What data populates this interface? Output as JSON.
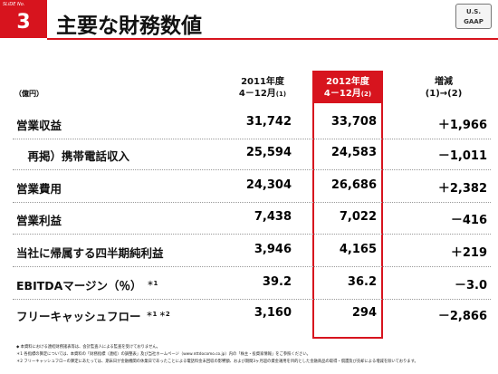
{
  "header": {
    "slide_label": "SLiDE No.",
    "slide_number": "3",
    "title": "主要な財務数値",
    "badge": [
      "U.S.",
      "GAAP"
    ]
  },
  "table": {
    "unit": "（億円）",
    "columns": [
      {
        "line1": "2011年度",
        "line2": "4－12月",
        "note": "(1)"
      },
      {
        "line1": "2012年度",
        "line2": "4－12月",
        "note": "(2)"
      },
      {
        "line1": "増減",
        "line2": "(1)→(2)",
        "note": ""
      }
    ],
    "rows": [
      {
        "label": "営業収益",
        "note": "",
        "cells": [
          "31,742",
          "33,708",
          "＋1,966"
        ]
      },
      {
        "label": "　再掲）携帯電話収入",
        "note": "",
        "cells": [
          "25,594",
          "24,583",
          "－1,011"
        ]
      },
      {
        "label": "営業費用",
        "note": "",
        "cells": [
          "24,304",
          "26,686",
          "＋2,382"
        ]
      },
      {
        "label": "営業利益",
        "note": "",
        "cells": [
          "7,438",
          "7,022",
          "－416"
        ]
      },
      {
        "label": "当社に帰属する四半期純利益",
        "note": "",
        "cells": [
          "3,946",
          "4,165",
          "＋219"
        ]
      },
      {
        "label": "EBITDAマージン（％）",
        "note": "＊1",
        "cells": [
          "39.2",
          "36.2",
          "－3.0"
        ]
      },
      {
        "label": "フリーキャッシュフロー",
        "note": "＊1 ＊2",
        "cells": [
          "3,160",
          "294",
          "－2,866"
        ]
      }
    ]
  },
  "footnotes": [
    "◆ 本資料における連結財務諸表等は、会計監査人による監査を受けておりません。",
    "＊1 各指標の算定については、本資料の「財務指標（連結）の調整表」及び当社ホームページ（www.nttdocomo.co.jp）内の「株主・投資家情報」をご参照ください。",
    "＊2 フリーキャッシュフローの算定にあたっては、期末日が金融機関の休業日であったことによる電話料金未回収の影響額、および期間3ヶ月超の資金運用を目的とした金融商品の取得・償還及び売却による増減を除いております。"
  ]
}
